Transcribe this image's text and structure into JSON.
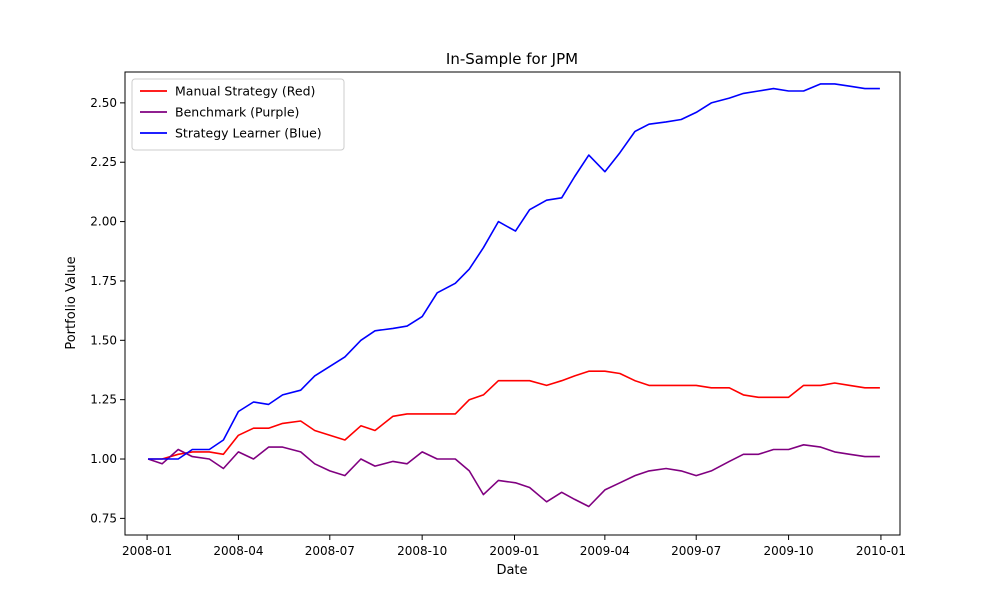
{
  "chart_data": {
    "type": "line",
    "title": "In-Sample for JPM",
    "xlabel": "Date",
    "ylabel": "Portfolio Value",
    "x_ticks": [
      "2008-01",
      "2008-04",
      "2008-07",
      "2008-10",
      "2009-01",
      "2009-04",
      "2009-07",
      "2009-10",
      "2010-01"
    ],
    "y_ticks": [
      "0.75",
      "1.00",
      "1.25",
      "1.50",
      "1.75",
      "2.00",
      "2.25",
      "2.50"
    ],
    "xlim": [
      "2007-12-10",
      "2010-01-20"
    ],
    "ylim": [
      0.68,
      2.63
    ],
    "grid": false,
    "legend_position": "top-left",
    "x": [
      "2008-01-02",
      "2008-01-16",
      "2008-02-01",
      "2008-02-15",
      "2008-03-03",
      "2008-03-17",
      "2008-04-01",
      "2008-04-16",
      "2008-05-01",
      "2008-05-15",
      "2008-06-02",
      "2008-06-16",
      "2008-07-01",
      "2008-07-16",
      "2008-08-01",
      "2008-08-15",
      "2008-09-02",
      "2008-09-16",
      "2008-10-01",
      "2008-10-16",
      "2008-11-03",
      "2008-11-17",
      "2008-12-01",
      "2008-12-16",
      "2009-01-02",
      "2009-01-16",
      "2009-02-02",
      "2009-02-17",
      "2009-03-02",
      "2009-03-16",
      "2009-04-01",
      "2009-04-16",
      "2009-05-01",
      "2009-05-15",
      "2009-06-01",
      "2009-06-16",
      "2009-07-01",
      "2009-07-16",
      "2009-08-03",
      "2009-08-17",
      "2009-09-01",
      "2009-09-16",
      "2009-10-01",
      "2009-10-16",
      "2009-11-02",
      "2009-11-16",
      "2009-12-01",
      "2009-12-16",
      "2009-12-31"
    ],
    "series": [
      {
        "name": "Manual Strategy (Red)",
        "color": "#ff0000",
        "values": [
          1.0,
          1.0,
          1.02,
          1.03,
          1.03,
          1.02,
          1.1,
          1.13,
          1.13,
          1.15,
          1.16,
          1.12,
          1.1,
          1.08,
          1.14,
          1.12,
          1.18,
          1.19,
          1.19,
          1.19,
          1.19,
          1.25,
          1.27,
          1.33,
          1.33,
          1.33,
          1.31,
          1.33,
          1.35,
          1.37,
          1.37,
          1.36,
          1.33,
          1.31,
          1.31,
          1.31,
          1.31,
          1.3,
          1.3,
          1.27,
          1.26,
          1.26,
          1.26,
          1.31,
          1.31,
          1.32,
          1.31,
          1.3,
          1.3
        ]
      },
      {
        "name": "Benchmark (Purple)",
        "color": "#800080",
        "values": [
          1.0,
          0.98,
          1.04,
          1.01,
          1.0,
          0.96,
          1.03,
          1.0,
          1.05,
          1.05,
          1.03,
          0.98,
          0.95,
          0.93,
          1.0,
          0.97,
          0.99,
          0.98,
          1.03,
          1.0,
          1.0,
          0.95,
          0.85,
          0.91,
          0.9,
          0.88,
          0.82,
          0.86,
          0.83,
          0.8,
          0.87,
          0.9,
          0.93,
          0.95,
          0.96,
          0.95,
          0.93,
          0.95,
          0.99,
          1.02,
          1.02,
          1.04,
          1.04,
          1.06,
          1.05,
          1.03,
          1.02,
          1.01,
          1.01
        ]
      },
      {
        "name": "Strategy Learner (Blue)",
        "color": "#0000ff",
        "values": [
          1.0,
          1.0,
          1.0,
          1.04,
          1.04,
          1.08,
          1.2,
          1.24,
          1.23,
          1.27,
          1.29,
          1.35,
          1.39,
          1.43,
          1.5,
          1.54,
          1.55,
          1.56,
          1.6,
          1.7,
          1.74,
          1.8,
          1.89,
          2.0,
          1.96,
          2.05,
          2.09,
          2.1,
          2.19,
          2.28,
          2.21,
          2.29,
          2.38,
          2.41,
          2.42,
          2.43,
          2.46,
          2.5,
          2.52,
          2.54,
          2.55,
          2.56,
          2.55,
          2.55,
          2.58,
          2.58,
          2.57,
          2.56,
          2.56
        ]
      }
    ]
  }
}
